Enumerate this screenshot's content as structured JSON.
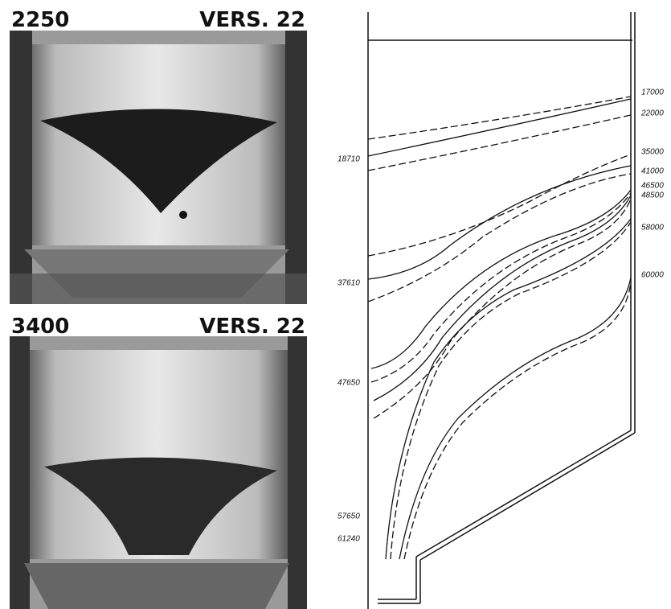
{
  "photos": [
    {
      "label_left": "2250",
      "label_right": "VERS. 22"
    },
    {
      "label_left": "3400",
      "label_right": "VERS. 22"
    }
  ],
  "diagram": {
    "left_labels": [
      "18710",
      "37610",
      "47650",
      "57650",
      "61240"
    ],
    "right_labels": [
      "17000",
      "22000",
      "35000",
      "41000",
      "46500",
      "48500",
      "58000",
      "60000"
    ]
  }
}
